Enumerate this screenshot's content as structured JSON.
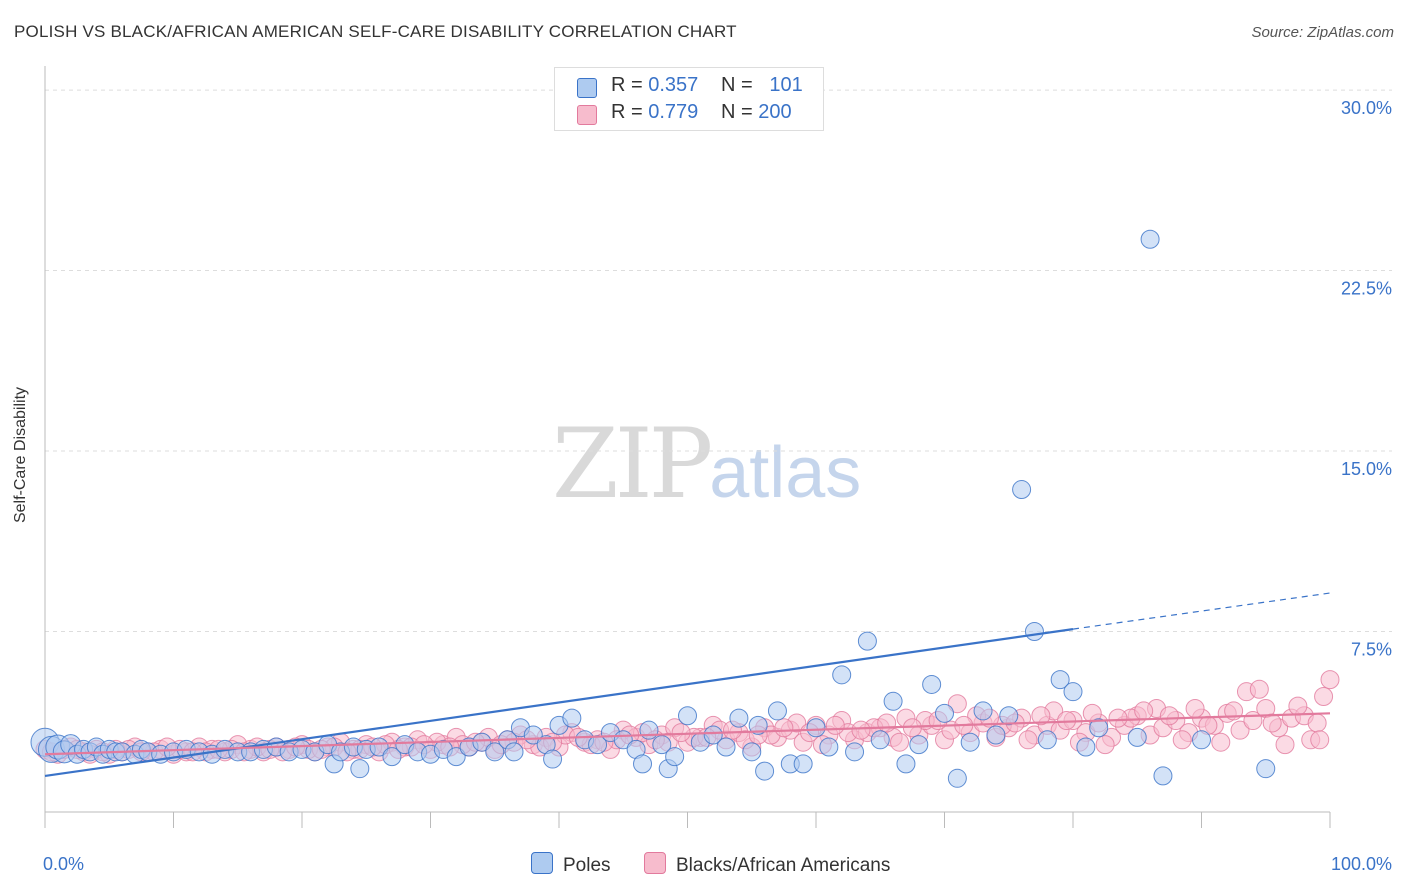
{
  "title": "POLISH VS BLACK/AFRICAN AMERICAN SELF-CARE DISABILITY CORRELATION CHART",
  "source": "Source: ZipAtlas.com",
  "watermark": {
    "zip": "ZIP",
    "atlas": "atlas"
  },
  "legend_top": {
    "rows": [
      {
        "r_label": "R = ",
        "r_value": "0.357",
        "n_label": "N = ",
        "n_value": "101",
        "color": "#aecbf0",
        "border": "#3a73c8"
      },
      {
        "r_label": "R = ",
        "r_value": "0.779",
        "n_label": "N = ",
        "n_value": "200",
        "color": "#f7bccd",
        "border": "#e27a9d"
      }
    ]
  },
  "legend_bottom": [
    {
      "label": "Poles",
      "color": "#aecbf0",
      "border": "#3a73c8"
    },
    {
      "label": "Blacks/African Americans",
      "color": "#f7bccd",
      "border": "#e27a9d"
    }
  ],
  "chart_data": {
    "type": "scatter",
    "ylabel": "Self-Care Disability",
    "xlabel": "",
    "x_tick_labels": [
      "0.0%",
      "100.0%"
    ],
    "y_tick_labels": [
      "7.5%",
      "15.0%",
      "22.5%",
      "30.0%"
    ],
    "xlim": [
      0,
      100
    ],
    "ylim": [
      0,
      31
    ],
    "grid": true,
    "legend_position": "top-center",
    "series": [
      {
        "name": "Poles",
        "color": "#3a73c8",
        "fill": "#aecbf0",
        "trend": {
          "x": [
            0,
            80,
            100
          ],
          "y": [
            1.5,
            7.6,
            9.1
          ],
          "dashed_from_x": 80
        },
        "points": [
          [
            0,
            2.9
          ],
          [
            0.5,
            2.6
          ],
          [
            1,
            2.7
          ],
          [
            1.5,
            2.5
          ],
          [
            2,
            2.8
          ],
          [
            2.5,
            2.4
          ],
          [
            3,
            2.6
          ],
          [
            3.5,
            2.5
          ],
          [
            4,
            2.7
          ],
          [
            4.5,
            2.4
          ],
          [
            5,
            2.6
          ],
          [
            5.5,
            2.5
          ],
          [
            6,
            2.5
          ],
          [
            7,
            2.4
          ],
          [
            7.5,
            2.6
          ],
          [
            8,
            2.5
          ],
          [
            9,
            2.4
          ],
          [
            10,
            2.5
          ],
          [
            11,
            2.6
          ],
          [
            12,
            2.5
          ],
          [
            13,
            2.4
          ],
          [
            14,
            2.6
          ],
          [
            15,
            2.5
          ],
          [
            16,
            2.5
          ],
          [
            17,
            2.6
          ],
          [
            18,
            2.7
          ],
          [
            19,
            2.5
          ],
          [
            20,
            2.6
          ],
          [
            21,
            2.5
          ],
          [
            22,
            2.8
          ],
          [
            22.5,
            2.0
          ],
          [
            23,
            2.5
          ],
          [
            24,
            2.7
          ],
          [
            24.5,
            1.8
          ],
          [
            25,
            2.6
          ],
          [
            26,
            2.7
          ],
          [
            27,
            2.3
          ],
          [
            28,
            2.8
          ],
          [
            29,
            2.5
          ],
          [
            30,
            2.4
          ],
          [
            31,
            2.6
          ],
          [
            32,
            2.3
          ],
          [
            33,
            2.7
          ],
          [
            34,
            2.9
          ],
          [
            35,
            2.5
          ],
          [
            36,
            3.0
          ],
          [
            36.5,
            2.5
          ],
          [
            37,
            3.5
          ],
          [
            38,
            3.2
          ],
          [
            39,
            2.8
          ],
          [
            39.5,
            2.2
          ],
          [
            40,
            3.6
          ],
          [
            41,
            3.9
          ],
          [
            42,
            3.0
          ],
          [
            43,
            2.8
          ],
          [
            44,
            3.3
          ],
          [
            45,
            3.0
          ],
          [
            46,
            2.6
          ],
          [
            46.5,
            2.0
          ],
          [
            47,
            3.4
          ],
          [
            48,
            2.8
          ],
          [
            48.5,
            1.8
          ],
          [
            49,
            2.3
          ],
          [
            50,
            4.0
          ],
          [
            51,
            2.9
          ],
          [
            52,
            3.2
          ],
          [
            53,
            2.7
          ],
          [
            54,
            3.9
          ],
          [
            55,
            2.5
          ],
          [
            55.5,
            3.6
          ],
          [
            56,
            1.7
          ],
          [
            57,
            4.2
          ],
          [
            58,
            2.0
          ],
          [
            59,
            2.0
          ],
          [
            60,
            3.5
          ],
          [
            61,
            2.7
          ],
          [
            62,
            5.7
          ],
          [
            63,
            2.5
          ],
          [
            64,
            7.1
          ],
          [
            65,
            3.0
          ],
          [
            66,
            4.6
          ],
          [
            67,
            2.0
          ],
          [
            68,
            2.8
          ],
          [
            69,
            5.3
          ],
          [
            70,
            4.1
          ],
          [
            71,
            1.4
          ],
          [
            72,
            2.9
          ],
          [
            73,
            4.2
          ],
          [
            74,
            3.2
          ],
          [
            75,
            4.0
          ],
          [
            76,
            13.4
          ],
          [
            77,
            7.5
          ],
          [
            78,
            3.0
          ],
          [
            79,
            5.5
          ],
          [
            80,
            5.0
          ],
          [
            81,
            2.7
          ],
          [
            82,
            3.5
          ],
          [
            85,
            3.1
          ],
          [
            86,
            23.8
          ],
          [
            87,
            1.5
          ],
          [
            90,
            3.0
          ],
          [
            95,
            1.8
          ]
        ]
      },
      {
        "name": "Blacks/African Americans",
        "color": "#e27a9d",
        "fill": "#f7bccd",
        "trend": {
          "x": [
            0,
            100
          ],
          "y": [
            2.4,
            4.1
          ]
        },
        "points": [
          [
            0,
            2.6
          ],
          [
            1,
            2.4
          ],
          [
            2,
            2.7
          ],
          [
            3,
            2.5
          ],
          [
            4,
            2.6
          ],
          [
            5,
            2.4
          ],
          [
            6,
            2.5
          ],
          [
            7,
            2.7
          ],
          [
            8,
            2.5
          ],
          [
            9,
            2.6
          ],
          [
            10,
            2.4
          ],
          [
            11,
            2.5
          ],
          [
            12,
            2.7
          ],
          [
            13,
            2.6
          ],
          [
            14,
            2.5
          ],
          [
            15,
            2.8
          ],
          [
            16,
            2.6
          ],
          [
            17,
            2.5
          ],
          [
            18,
            2.7
          ],
          [
            19,
            2.6
          ],
          [
            20,
            2.8
          ],
          [
            21,
            2.5
          ],
          [
            22,
            2.7
          ],
          [
            23,
            2.9
          ],
          [
            24,
            2.6
          ],
          [
            25,
            2.8
          ],
          [
            26,
            2.5
          ],
          [
            27,
            2.9
          ],
          [
            28,
            2.7
          ],
          [
            29,
            3.0
          ],
          [
            30,
            2.6
          ],
          [
            31,
            2.8
          ],
          [
            32,
            3.1
          ],
          [
            33,
            2.7
          ],
          [
            34,
            2.9
          ],
          [
            35,
            2.6
          ],
          [
            36,
            3.0
          ],
          [
            37,
            3.2
          ],
          [
            38,
            2.8
          ],
          [
            39,
            3.1
          ],
          [
            40,
            2.7
          ],
          [
            41,
            3.3
          ],
          [
            42,
            2.9
          ],
          [
            43,
            3.0
          ],
          [
            44,
            2.6
          ],
          [
            45,
            3.4
          ],
          [
            46,
            3.1
          ],
          [
            47,
            2.8
          ],
          [
            48,
            3.2
          ],
          [
            49,
            3.5
          ],
          [
            50,
            2.9
          ],
          [
            51,
            3.1
          ],
          [
            52,
            3.6
          ],
          [
            53,
            3.0
          ],
          [
            54,
            3.3
          ],
          [
            55,
            2.7
          ],
          [
            56,
            3.5
          ],
          [
            57,
            3.1
          ],
          [
            58,
            3.4
          ],
          [
            59,
            2.9
          ],
          [
            60,
            3.6
          ],
          [
            61,
            3.2
          ],
          [
            62,
            3.8
          ],
          [
            63,
            3.0
          ],
          [
            64,
            3.3
          ],
          [
            65,
            3.5
          ],
          [
            66,
            3.1
          ],
          [
            67,
            3.9
          ],
          [
            68,
            3.2
          ],
          [
            69,
            3.6
          ],
          [
            70,
            3.0
          ],
          [
            71,
            4.5
          ],
          [
            72,
            3.3
          ],
          [
            73,
            3.7
          ],
          [
            74,
            3.1
          ],
          [
            75,
            3.5
          ],
          [
            76,
            3.9
          ],
          [
            77,
            3.2
          ],
          [
            78,
            3.6
          ],
          [
            79,
            3.4
          ],
          [
            80,
            3.8
          ],
          [
            81,
            3.3
          ],
          [
            82,
            3.7
          ],
          [
            83,
            3.1
          ],
          [
            84,
            3.6
          ],
          [
            85,
            4.0
          ],
          [
            86,
            3.2
          ],
          [
            87,
            3.5
          ],
          [
            88,
            3.8
          ],
          [
            89,
            3.3
          ],
          [
            90,
            3.9
          ],
          [
            91,
            3.6
          ],
          [
            92,
            4.1
          ],
          [
            93,
            3.4
          ],
          [
            94,
            3.8
          ],
          [
            95,
            4.3
          ],
          [
            96,
            3.5
          ],
          [
            97,
            3.9
          ],
          [
            98,
            4.0
          ],
          [
            99,
            3.7
          ],
          [
            100,
            5.5
          ],
          [
            82.5,
            2.8
          ],
          [
            86.5,
            4.3
          ],
          [
            91.5,
            2.9
          ],
          [
            93.5,
            5.0
          ],
          [
            96.5,
            2.8
          ],
          [
            97.5,
            4.4
          ],
          [
            98.5,
            3.0
          ],
          [
            99.5,
            4.8
          ],
          [
            94.5,
            5.1
          ],
          [
            92.5,
            4.2
          ],
          [
            88.5,
            3.0
          ],
          [
            84.5,
            3.9
          ],
          [
            80.5,
            2.9
          ],
          [
            78.5,
            4.2
          ],
          [
            76.5,
            3.0
          ],
          [
            74.5,
            3.6
          ],
          [
            72.5,
            4.0
          ],
          [
            70.5,
            3.4
          ],
          [
            68.5,
            3.8
          ],
          [
            66.5,
            2.9
          ],
          [
            64.5,
            3.5
          ],
          [
            62.5,
            3.3
          ],
          [
            60.5,
            2.8
          ],
          [
            58.5,
            3.7
          ],
          [
            56.5,
            3.2
          ],
          [
            54.5,
            3.0
          ],
          [
            52.5,
            3.4
          ],
          [
            50.5,
            3.1
          ],
          [
            48.5,
            2.9
          ],
          [
            46.5,
            3.3
          ],
          [
            44.5,
            3.0
          ],
          [
            42.5,
            2.8
          ],
          [
            40.5,
            3.2
          ],
          [
            38.5,
            2.7
          ],
          [
            36.5,
            2.9
          ],
          [
            34.5,
            3.1
          ],
          [
            32.5,
            2.8
          ],
          [
            30.5,
            2.9
          ],
          [
            28.5,
            2.7
          ],
          [
            26.5,
            2.8
          ],
          [
            24.5,
            2.6
          ],
          [
            22.5,
            2.7
          ],
          [
            20.5,
            2.6
          ],
          [
            18.5,
            2.5
          ],
          [
            16.5,
            2.7
          ],
          [
            14.5,
            2.6
          ],
          [
            12.5,
            2.5
          ],
          [
            10.5,
            2.6
          ],
          [
            8.5,
            2.5
          ],
          [
            6.5,
            2.6
          ],
          [
            4.5,
            2.5
          ],
          [
            2.5,
            2.6
          ],
          [
            0.5,
            2.5
          ],
          [
            1.5,
            2.6
          ],
          [
            3.5,
            2.4
          ],
          [
            5.5,
            2.6
          ],
          [
            7.5,
            2.5
          ],
          [
            9.5,
            2.7
          ],
          [
            11.5,
            2.5
          ],
          [
            13.5,
            2.6
          ],
          [
            15.5,
            2.5
          ],
          [
            17.5,
            2.6
          ],
          [
            19.5,
            2.7
          ],
          [
            21.5,
            2.6
          ],
          [
            23.5,
            2.5
          ],
          [
            25.5,
            2.7
          ],
          [
            27.5,
            2.6
          ],
          [
            29.5,
            2.8
          ],
          [
            31.5,
            2.7
          ],
          [
            33.5,
            2.9
          ],
          [
            35.5,
            2.8
          ],
          [
            37.5,
            3.0
          ],
          [
            39.5,
            2.9
          ],
          [
            41.5,
            3.1
          ],
          [
            43.5,
            2.9
          ],
          [
            45.5,
            3.2
          ],
          [
            47.5,
            3.0
          ],
          [
            49.5,
            3.3
          ],
          [
            51.5,
            3.1
          ],
          [
            53.5,
            3.4
          ],
          [
            55.5,
            3.2
          ],
          [
            57.5,
            3.5
          ],
          [
            59.5,
            3.3
          ],
          [
            61.5,
            3.6
          ],
          [
            63.5,
            3.4
          ],
          [
            65.5,
            3.7
          ],
          [
            67.5,
            3.5
          ],
          [
            69.5,
            3.8
          ],
          [
            71.5,
            3.6
          ],
          [
            73.5,
            3.9
          ],
          [
            75.5,
            3.7
          ],
          [
            77.5,
            4.0
          ],
          [
            79.5,
            3.8
          ],
          [
            81.5,
            4.1
          ],
          [
            83.5,
            3.9
          ],
          [
            85.5,
            4.2
          ],
          [
            87.5,
            4.0
          ],
          [
            89.5,
            4.3
          ],
          [
            90.5,
            3.6
          ],
          [
            95.5,
            3.7
          ],
          [
            99.2,
            3.0
          ]
        ]
      }
    ]
  }
}
